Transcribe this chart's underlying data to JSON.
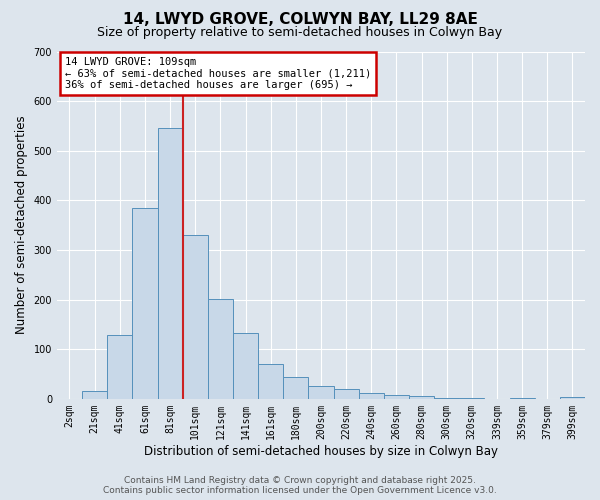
{
  "title": "14, LWYD GROVE, COLWYN BAY, LL29 8AE",
  "subtitle": "Size of property relative to semi-detached houses in Colwyn Bay",
  "xlabel": "Distribution of semi-detached houses by size in Colwyn Bay",
  "ylabel": "Number of semi-detached properties",
  "categories": [
    "2sqm",
    "21sqm",
    "41sqm",
    "61sqm",
    "81sqm",
    "101sqm",
    "121sqm",
    "141sqm",
    "161sqm",
    "180sqm",
    "200sqm",
    "220sqm",
    "240sqm",
    "260sqm",
    "280sqm",
    "300sqm",
    "320sqm",
    "339sqm",
    "359sqm",
    "379sqm",
    "399sqm"
  ],
  "values": [
    0,
    16,
    128,
    385,
    545,
    330,
    202,
    133,
    70,
    43,
    25,
    20,
    12,
    8,
    6,
    1,
    1,
    0,
    1,
    0,
    4
  ],
  "bar_color": "#c8d8e8",
  "bar_edge_color": "#5590bb",
  "highlight_index": 4.5,
  "highlight_line_color": "#cc2222",
  "annotation_text": "14 LWYD GROVE: 109sqm\n← 63% of semi-detached houses are smaller (1,211)\n36% of semi-detached houses are larger (695) →",
  "annotation_box_color": "#ffffff",
  "annotation_box_edge_color": "#cc0000",
  "ylim": [
    0,
    700
  ],
  "yticks": [
    0,
    100,
    200,
    300,
    400,
    500,
    600,
    700
  ],
  "background_color": "#dde5ed",
  "plot_background_color": "#dde5ed",
  "grid_color": "#ffffff",
  "footer_line1": "Contains HM Land Registry data © Crown copyright and database right 2025.",
  "footer_line2": "Contains public sector information licensed under the Open Government Licence v3.0.",
  "title_fontsize": 11,
  "subtitle_fontsize": 9,
  "label_fontsize": 8.5,
  "tick_fontsize": 7,
  "footer_fontsize": 6.5
}
